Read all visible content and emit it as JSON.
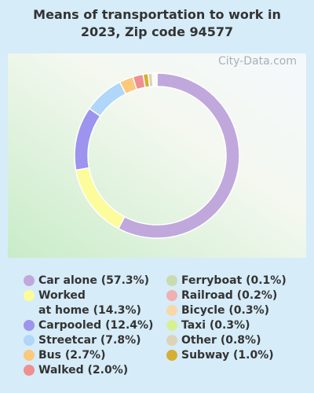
{
  "chart_data": {
    "type": "donut",
    "title": "Means of transportation to work in 2023, Zip code 94577",
    "watermark": "City-Data.com",
    "categories": [
      "Car alone",
      "Worked\nat home",
      "Carpooled",
      "Streetcar",
      "Bus",
      "Walked",
      "Ferryboat",
      "Railroad",
      "Bicycle",
      "Taxi",
      "Other",
      "Subway"
    ],
    "values": [
      57.3,
      14.3,
      12.4,
      7.8,
      2.7,
      2.0,
      0.1,
      0.2,
      0.3,
      0.3,
      0.8,
      1.0
    ],
    "value_labels": [
      "(57.3%)",
      "(14.3%)",
      "(12.4%)",
      "(7.8%)",
      "(2.7%)",
      "(2.0%)",
      "(0.1%)",
      "(0.2%)",
      "(0.3%)",
      "(0.3%)",
      "(0.8%)",
      "(1.0%)"
    ],
    "colors": [
      "#c0a8dc",
      "#fcfc9a",
      "#9c94ee",
      "#b0d6fa",
      "#fcc87a",
      "#ee9090",
      "#c8dcb0",
      "#f0b0b0",
      "#f8d8a8",
      "#d8f094",
      "#dcd4b8",
      "#d4b032"
    ],
    "donut_order": [
      0,
      1,
      2,
      3,
      4,
      5,
      11,
      10,
      8,
      9,
      7,
      6
    ]
  }
}
